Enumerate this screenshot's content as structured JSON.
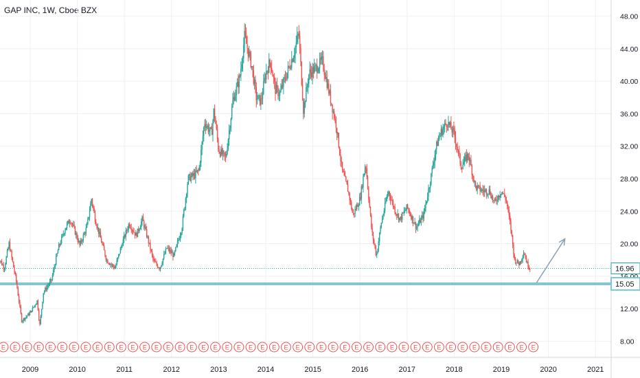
{
  "header": {
    "title": "GAP INC, 1W, Cboe BZX"
  },
  "colors": {
    "up": "#26a69a",
    "down": "#ef5350",
    "support": "#7fc6d6",
    "arrow": "#8aa1b4",
    "grid": "#eef0f3",
    "earnings": "#ef5350"
  },
  "icons": {
    "earnings_marker": "earnings-e-icon",
    "trend_arrow": "arrow-up-right-icon"
  },
  "chart_data": {
    "type": "candlestick",
    "symbol": "GAP INC",
    "interval": "1W",
    "exchange": "Cboe BZX",
    "ylim": [
      6,
      50
    ],
    "y_ticks": [
      "8.00",
      "12.00",
      "16.00",
      "20.00",
      "24.00",
      "28.00",
      "32.00",
      "36.00",
      "40.00",
      "44.00",
      "48.00"
    ],
    "x_ticks": [
      "2009",
      "2010",
      "2011",
      "2012",
      "2013",
      "2014",
      "2015",
      "2016",
      "2017",
      "2018",
      "2019",
      "2020",
      "2021"
    ],
    "grid": true,
    "price_path": {
      "x": [
        2008.3,
        2008.45,
        2008.55,
        2008.7,
        2008.82,
        2009.0,
        2009.15,
        2009.2,
        2009.28,
        2009.45,
        2009.6,
        2009.75,
        2009.85,
        2009.95,
        2010.05,
        2010.2,
        2010.3,
        2010.38,
        2010.5,
        2010.62,
        2010.8,
        2010.95,
        2011.1,
        2011.25,
        2011.38,
        2011.5,
        2011.62,
        2011.75,
        2011.9,
        2012.05,
        2012.22,
        2012.35,
        2012.5,
        2012.58,
        2012.7,
        2012.85,
        2012.9,
        2013.0,
        2013.15,
        2013.3,
        2013.45,
        2013.55,
        2013.7,
        2013.8,
        2013.9,
        2014.0,
        2014.1,
        2014.2,
        2014.3,
        2014.45,
        2014.6,
        2014.7,
        2014.8,
        2014.92,
        2015.05,
        2015.2,
        2015.35,
        2015.5,
        2015.62,
        2015.75,
        2015.85,
        2016.0,
        2016.12,
        2016.25,
        2016.35,
        2016.45,
        2016.6,
        2016.75,
        2016.85,
        2017.0,
        2017.2,
        2017.35,
        2017.5,
        2017.6,
        2017.7,
        2017.85,
        2018.0,
        2018.15,
        2018.3,
        2018.45,
        2018.6,
        2018.75,
        2018.85,
        2019.0,
        2019.1,
        2019.2,
        2019.28,
        2019.38,
        2019.48,
        2019.55,
        2019.62
      ],
      "y": [
        18.5,
        17.0,
        20.0,
        15.5,
        10.5,
        11.5,
        13.0,
        9.8,
        14.0,
        15.5,
        19.5,
        22.0,
        23.0,
        21.5,
        19.8,
        22.0,
        25.5,
        23.0,
        20.5,
        18.0,
        17.0,
        20.0,
        22.5,
        21.0,
        23.0,
        20.5,
        17.8,
        17.0,
        19.5,
        18.5,
        22.0,
        28.0,
        28.5,
        29.0,
        35.0,
        33.5,
        36.5,
        31.5,
        30.5,
        37.5,
        40.5,
        45.5,
        42.0,
        38.0,
        37.5,
        41.0,
        42.5,
        39.0,
        38.5,
        41.0,
        43.5,
        46.0,
        36.5,
        41.0,
        41.5,
        42.5,
        38.5,
        34.5,
        29.0,
        26.5,
        23.5,
        25.5,
        30.0,
        21.5,
        18.5,
        22.5,
        26.5,
        24.0,
        23.0,
        24.5,
        22.0,
        23.5,
        28.0,
        31.5,
        33.5,
        35.0,
        33.5,
        29.5,
        31.0,
        27.0,
        26.5,
        26.5,
        25.0,
        26.5,
        25.5,
        22.0,
        18.0,
        17.5,
        19.0,
        17.5,
        16.96
      ]
    },
    "last_price": "16.96",
    "support_level": "15.05",
    "support_value": 15.05,
    "annotation": {
      "type": "arrow",
      "from": [
        2019.75,
        15.2
      ],
      "to": [
        2020.35,
        20.6
      ]
    },
    "earnings_markers": {
      "label": "E",
      "x_start": 2008.18,
      "x_end": 2019.7,
      "per_year": 4
    }
  }
}
